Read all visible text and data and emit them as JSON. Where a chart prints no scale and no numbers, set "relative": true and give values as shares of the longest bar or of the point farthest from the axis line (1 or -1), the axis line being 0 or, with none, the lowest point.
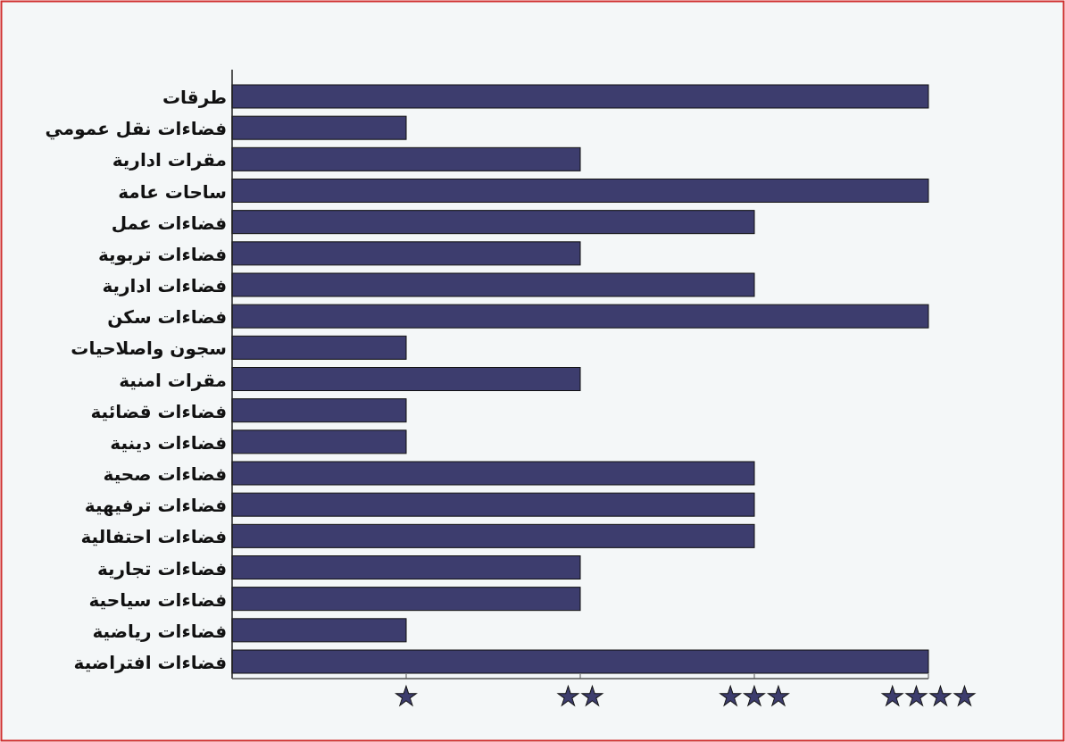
{
  "chart_data": {
    "type": "bar",
    "orientation": "horizontal",
    "relative": true,
    "categories": [
      "طرقات",
      "فضاءات نقل عمومي",
      "مقرات ادارية",
      "ساحات عامة",
      "فضاءات عمل",
      "فضاءات تربوية",
      "فضاءات ادارية",
      "فضاءات سكن",
      "سجون واصلاحيات",
      "مقرات امنية",
      "فضاءات قضائية",
      "فضاءات دينية",
      "فضاءات صحية",
      "فضاءات ترفيهية",
      "فضاءات احتفالية",
      "فضاءات تجارية",
      "فضاءات سياحية",
      "فضاءات رياضية",
      "فضاءات افتراضية"
    ],
    "values": [
      1,
      0.25,
      0.5,
      1,
      0.75,
      0.5,
      0.75,
      1,
      0.25,
      0.5,
      0.25,
      0.25,
      0.75,
      0.75,
      0.75,
      0.5,
      0.5,
      0.25,
      1
    ],
    "color": "#3d3d6e",
    "annotations": [
      {
        "text": "★",
        "x": 0.25
      },
      {
        "text": "★★",
        "x": 0.5
      },
      {
        "text": "★★★",
        "x": 0.75
      },
      {
        "text": "★★★★",
        "x": 1
      }
    ]
  }
}
